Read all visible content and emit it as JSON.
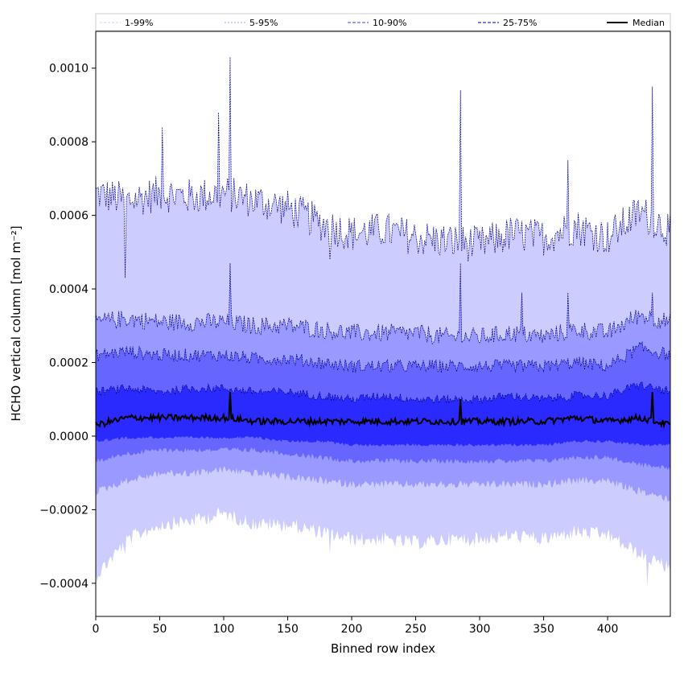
{
  "chart_data": {
    "type": "area",
    "title": "",
    "xlabel": "Binned row index",
    "ylabel": "HCHO vertical column [mol m⁻²]",
    "xlim": [
      0,
      449
    ],
    "ylim": [
      -0.00049,
      0.0011
    ],
    "x_ticks": [
      0,
      50,
      100,
      150,
      200,
      250,
      300,
      350,
      400
    ],
    "y_ticks": [
      -0.0004,
      -0.0002,
      0.0,
      0.0002,
      0.0004,
      0.0006,
      0.0008,
      0.001
    ],
    "x_tick_labels": [
      "0",
      "50",
      "100",
      "150",
      "200",
      "250",
      "300",
      "350",
      "400"
    ],
    "y_tick_labels": [
      "−0.0004",
      "−0.0002",
      "0.0000",
      "0.0002",
      "0.0004",
      "0.0006",
      "0.0008",
      "0.0010"
    ],
    "grid": false,
    "legend_position": "top",
    "colors": {
      "band_1_99": "#ccccff",
      "band_5_95": "#9999ff",
      "band_10_90": "#6666ff",
      "band_25_75": "#2a2aff",
      "percentile_line": "#00008b",
      "median": "#000000"
    },
    "series": [
      {
        "name": "1-99%",
        "x": [
          0,
          25,
          50,
          75,
          100,
          125,
          150,
          175,
          200,
          225,
          250,
          275,
          300,
          325,
          350,
          375,
          400,
          425,
          449
        ],
        "upper": [
          0.00066,
          0.00064,
          0.00066,
          0.00065,
          0.00066,
          0.00064,
          0.00062,
          0.00058,
          0.00055,
          0.00056,
          0.00054,
          0.00053,
          0.00052,
          0.00055,
          0.00054,
          0.00057,
          0.00054,
          0.00061,
          0.00056
        ],
        "lower": [
          -0.00036,
          -0.00026,
          -0.00022,
          -0.00021,
          -0.00019,
          -0.00022,
          -0.00022,
          -0.00024,
          -0.00026,
          -0.00026,
          -0.00027,
          -0.00026,
          -0.00026,
          -0.00025,
          -0.00026,
          -0.00024,
          -0.00025,
          -0.0003,
          -0.00034
        ]
      },
      {
        "name": "5-95%",
        "x": [
          0,
          25,
          50,
          75,
          100,
          125,
          150,
          175,
          200,
          225,
          250,
          275,
          300,
          325,
          350,
          375,
          400,
          425,
          449
        ],
        "upper": [
          0.00031,
          0.00032,
          0.00031,
          0.00031,
          0.00031,
          0.0003,
          0.0003,
          0.00029,
          0.00028,
          0.00028,
          0.00028,
          0.00027,
          0.00027,
          0.00028,
          0.00027,
          0.00029,
          0.00028,
          0.00033,
          0.00031
        ],
        "lower": [
          -0.00014,
          -0.00011,
          -9e-05,
          -9e-05,
          -8e-05,
          -9e-05,
          -0.0001,
          -0.00011,
          -0.00012,
          -0.00012,
          -0.00012,
          -0.00012,
          -0.00012,
          -0.00012,
          -0.00012,
          -0.00011,
          -0.00011,
          -0.00014,
          -0.00016
        ]
      },
      {
        "name": "10-90%",
        "x": [
          0,
          25,
          50,
          75,
          100,
          125,
          150,
          175,
          200,
          225,
          250,
          275,
          300,
          325,
          350,
          375,
          400,
          425,
          449
        ],
        "upper": [
          0.00022,
          0.00023,
          0.00022,
          0.00022,
          0.00022,
          0.00021,
          0.00021,
          0.0002,
          0.00019,
          0.00019,
          0.00019,
          0.00019,
          0.00019,
          0.00019,
          0.00019,
          0.0002,
          0.00019,
          0.00024,
          0.00022
        ],
        "lower": [
          -6e-05,
          -4e-05,
          -3e-05,
          -3e-05,
          -3e-05,
          -3e-05,
          -4e-05,
          -5e-05,
          -6e-05,
          -6e-05,
          -6e-05,
          -6e-05,
          -6e-05,
          -6e-05,
          -6e-05,
          -5e-05,
          -5e-05,
          -7e-05,
          -8e-05
        ]
      },
      {
        "name": "25-75%",
        "x": [
          0,
          25,
          50,
          75,
          100,
          125,
          150,
          175,
          200,
          225,
          250,
          275,
          300,
          325,
          350,
          375,
          400,
          425,
          449
        ],
        "upper": [
          0.00012,
          0.00013,
          0.00012,
          0.00013,
          0.00013,
          0.00012,
          0.00012,
          0.00011,
          0.0001,
          0.00011,
          0.0001,
          0.0001,
          0.0001,
          0.00011,
          0.0001,
          0.00011,
          0.00011,
          0.00014,
          0.00012
        ],
        "lower": [
          -1e-05,
          0.0,
          0.0,
          0.0,
          0.0,
          0.0,
          -1e-05,
          -1e-05,
          -2e-05,
          -2e-05,
          -2e-05,
          -2e-05,
          -2e-05,
          -2e-05,
          -2e-05,
          -1e-05,
          -1e-05,
          -2e-05,
          -2e-05
        ]
      },
      {
        "name": "Median",
        "x": [
          0,
          25,
          50,
          75,
          100,
          125,
          150,
          175,
          200,
          225,
          250,
          275,
          300,
          325,
          350,
          375,
          400,
          425,
          449
        ],
        "values": [
          3e-05,
          5e-05,
          5e-05,
          5e-05,
          5e-05,
          4e-05,
          4e-05,
          4e-05,
          4e-05,
          4e-05,
          4e-05,
          4e-05,
          4e-05,
          4e-05,
          4e-05,
          5e-05,
          4e-05,
          5e-05,
          3e-05
        ]
      }
    ],
    "spikes": [
      {
        "x": 23,
        "upper_1_99": 0.00043,
        "lower_1_99": -0.00032
      },
      {
        "x": 52,
        "upper_1_99": 0.00084
      },
      {
        "x": 96,
        "upper_1_99": 0.00088
      },
      {
        "x": 105,
        "upper_1_99": 0.00103,
        "upper_5_95": 0.00047,
        "median": 0.00012
      },
      {
        "x": 183,
        "upper_1_99": 0.00048,
        "lower_1_99": -0.00032
      },
      {
        "x": 285,
        "upper_1_99": 0.00094,
        "upper_5_95": 0.00047,
        "median": 0.0001
      },
      {
        "x": 333,
        "upper_5_95": 0.00039
      },
      {
        "x": 369,
        "upper_1_99": 0.00075,
        "upper_5_95": 0.00039
      },
      {
        "x": 397,
        "lower_1_99": -0.00027
      },
      {
        "x": 431,
        "lower_1_99": -0.00041
      },
      {
        "x": 435,
        "upper_1_99": 0.00095,
        "upper_5_95": 0.00039,
        "median": 0.00012
      }
    ]
  }
}
